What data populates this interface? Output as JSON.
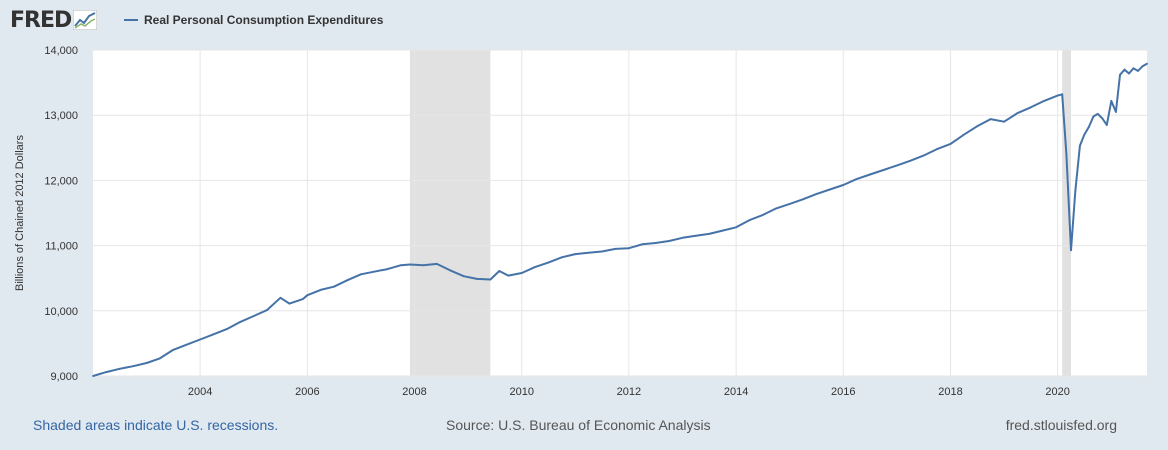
{
  "header": {
    "logo_text": "FRED",
    "logo_icon": "line-graph-icon"
  },
  "footer": {
    "recession_note": "Shaded areas indicate U.S. recessions.",
    "source": "Source: U.S. Bureau of Economic Analysis",
    "site": "fred.stlouisfed.org"
  },
  "colors": {
    "series": "#4572a7",
    "recession": "#e1e1e1",
    "grid": "#e6e6e6",
    "background": "#e1e9f0",
    "plot": "#ffffff"
  },
  "chart_data": {
    "type": "line",
    "title": "",
    "xlabel": "",
    "ylabel": "Billions of Chained 2012 Dollars",
    "xlim": [
      "2002-01-01",
      "2021-09-01"
    ],
    "ylim": [
      9000,
      14000
    ],
    "yticks": [
      9000,
      10000,
      11000,
      12000,
      13000,
      14000
    ],
    "ytick_labels": [
      "9,000",
      "10,000",
      "11,000",
      "12,000",
      "13,000",
      "14,000"
    ],
    "xticks": [
      "2004-01-01",
      "2006-01-01",
      "2008-01-01",
      "2010-01-01",
      "2012-01-01",
      "2014-01-01",
      "2016-01-01",
      "2018-01-01",
      "2020-01-01"
    ],
    "xtick_labels": [
      "2004",
      "2006",
      "2008",
      "2010",
      "2012",
      "2014",
      "2016",
      "2018",
      "2020"
    ],
    "grid": true,
    "legend": "top-left",
    "recessions": [
      {
        "start": "2007-12-01",
        "end": "2009-06-01"
      },
      {
        "start": "2020-02-01",
        "end": "2020-04-01"
      }
    ],
    "series": [
      {
        "name": "Real Personal Consumption Expenditures",
        "color": "#4572a7",
        "points": [
          [
            "2002-01-01",
            9000
          ],
          [
            "2002-04-01",
            9060
          ],
          [
            "2002-07-01",
            9110
          ],
          [
            "2002-10-01",
            9150
          ],
          [
            "2003-01-01",
            9200
          ],
          [
            "2003-04-01",
            9270
          ],
          [
            "2003-07-01",
            9400
          ],
          [
            "2003-10-01",
            9480
          ],
          [
            "2004-01-01",
            9560
          ],
          [
            "2004-04-01",
            9640
          ],
          [
            "2004-07-01",
            9720
          ],
          [
            "2004-10-01",
            9830
          ],
          [
            "2005-01-01",
            9920
          ],
          [
            "2005-04-01",
            10010
          ],
          [
            "2005-07-01",
            10200
          ],
          [
            "2005-09-01",
            10110
          ],
          [
            "2005-12-01",
            10180
          ],
          [
            "2006-01-01",
            10240
          ],
          [
            "2006-04-01",
            10320
          ],
          [
            "2006-07-01",
            10370
          ],
          [
            "2006-10-01",
            10470
          ],
          [
            "2007-01-01",
            10560
          ],
          [
            "2007-04-01",
            10600
          ],
          [
            "2007-07-01",
            10640
          ],
          [
            "2007-10-01",
            10700
          ],
          [
            "2007-12-01",
            10710
          ],
          [
            "2008-03-01",
            10700
          ],
          [
            "2008-06-01",
            10720
          ],
          [
            "2008-09-01",
            10620
          ],
          [
            "2008-12-01",
            10530
          ],
          [
            "2009-03-01",
            10490
          ],
          [
            "2009-06-01",
            10480
          ],
          [
            "2009-08-01",
            10610
          ],
          [
            "2009-10-01",
            10540
          ],
          [
            "2010-01-01",
            10580
          ],
          [
            "2010-04-01",
            10670
          ],
          [
            "2010-07-01",
            10740
          ],
          [
            "2010-10-01",
            10820
          ],
          [
            "2011-01-01",
            10870
          ],
          [
            "2011-04-01",
            10890
          ],
          [
            "2011-07-01",
            10910
          ],
          [
            "2011-10-01",
            10950
          ],
          [
            "2012-01-01",
            10960
          ],
          [
            "2012-04-01",
            11020
          ],
          [
            "2012-07-01",
            11040
          ],
          [
            "2012-10-01",
            11070
          ],
          [
            "2013-01-01",
            11120
          ],
          [
            "2013-04-01",
            11150
          ],
          [
            "2013-07-01",
            11180
          ],
          [
            "2013-10-01",
            11230
          ],
          [
            "2014-01-01",
            11280
          ],
          [
            "2014-04-01",
            11390
          ],
          [
            "2014-07-01",
            11470
          ],
          [
            "2014-10-01",
            11570
          ],
          [
            "2015-01-01",
            11640
          ],
          [
            "2015-04-01",
            11710
          ],
          [
            "2015-07-01",
            11790
          ],
          [
            "2015-10-01",
            11860
          ],
          [
            "2016-01-01",
            11930
          ],
          [
            "2016-04-01",
            12020
          ],
          [
            "2016-07-01",
            12090
          ],
          [
            "2016-10-01",
            12160
          ],
          [
            "2017-01-01",
            12230
          ],
          [
            "2017-04-01",
            12300
          ],
          [
            "2017-07-01",
            12380
          ],
          [
            "2017-10-01",
            12480
          ],
          [
            "2018-01-01",
            12560
          ],
          [
            "2018-04-01",
            12700
          ],
          [
            "2018-07-01",
            12830
          ],
          [
            "2018-10-01",
            12940
          ],
          [
            "2019-01-01",
            12900
          ],
          [
            "2019-04-01",
            13030
          ],
          [
            "2019-07-01",
            13120
          ],
          [
            "2019-10-01",
            13220
          ],
          [
            "2020-01-01",
            13300
          ],
          [
            "2020-02-01",
            13320
          ],
          [
            "2020-03-01",
            12400
          ],
          [
            "2020-04-01",
            10930
          ],
          [
            "2020-05-01",
            11850
          ],
          [
            "2020-06-01",
            12530
          ],
          [
            "2020-07-01",
            12700
          ],
          [
            "2020-08-01",
            12820
          ],
          [
            "2020-09-01",
            12980
          ],
          [
            "2020-10-01",
            13020
          ],
          [
            "2020-11-01",
            12950
          ],
          [
            "2020-12-01",
            12850
          ],
          [
            "2021-01-01",
            13220
          ],
          [
            "2021-02-01",
            13050
          ],
          [
            "2021-03-01",
            13620
          ],
          [
            "2021-04-01",
            13700
          ],
          [
            "2021-05-01",
            13640
          ],
          [
            "2021-06-01",
            13720
          ],
          [
            "2021-07-01",
            13680
          ],
          [
            "2021-08-01",
            13750
          ],
          [
            "2021-09-01",
            13790
          ]
        ]
      }
    ]
  }
}
